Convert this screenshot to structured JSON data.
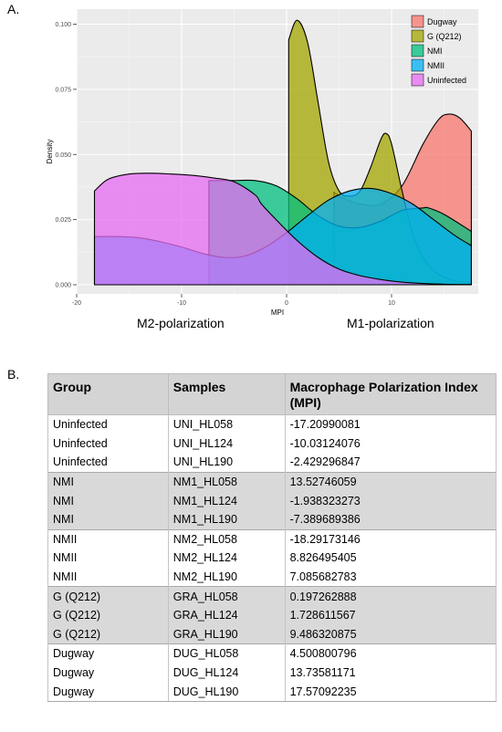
{
  "panels": {
    "a": "A.",
    "b": "B."
  },
  "polarization": {
    "left": "M2-polarization",
    "right": "M1-polarization"
  },
  "chart_data": {
    "type": "area",
    "xlabel": "MPI",
    "ylabel": "Density",
    "xlim": [
      -20,
      18
    ],
    "ylim": [
      0,
      0.105
    ],
    "xticks": [
      -20,
      -10,
      0,
      10
    ],
    "yticks": [
      0.0,
      0.025,
      0.05,
      0.075,
      0.1
    ],
    "ytick_labels": [
      "0.000",
      "0.025",
      "0.050",
      "0.075",
      "0.100"
    ],
    "grid": true,
    "legend": "top-right",
    "series": [
      {
        "name": "Dugway",
        "color": "#f8766d",
        "x": [
          4.5,
          5.5,
          7,
          9,
          11,
          13,
          14.5,
          15.5,
          16.5,
          17.6
        ],
        "y": [
          0.0355,
          0.033,
          0.031,
          0.031,
          0.038,
          0.054,
          0.0635,
          0.0655,
          0.064,
          0.059
        ]
      },
      {
        "name": "G (Q212)",
        "color": "#a3a500",
        "x": [
          0.2,
          1,
          2,
          3,
          4,
          5,
          6,
          7,
          8,
          9,
          9.5,
          10,
          11,
          12,
          13,
          14,
          15,
          16,
          17.6
        ],
        "y": [
          0.094,
          0.1015,
          0.093,
          0.07,
          0.047,
          0.036,
          0.034,
          0.036,
          0.045,
          0.056,
          0.058,
          0.054,
          0.036,
          0.02,
          0.0105,
          0.0055,
          0.003,
          0.0015,
          0.0008
        ]
      },
      {
        "name": "NMI",
        "color": "#00bf7d",
        "x": [
          -7.4,
          -5,
          -3,
          -1,
          1,
          3,
          5,
          7,
          9,
          11,
          13,
          13.5,
          15,
          17.6
        ],
        "y": [
          0.04,
          0.04,
          0.04,
          0.038,
          0.033,
          0.0265,
          0.0225,
          0.022,
          0.0245,
          0.0285,
          0.0295,
          0.0295,
          0.027,
          0.0205
        ]
      },
      {
        "name": "NMII",
        "color": "#00b0f6",
        "x": [
          -18.3,
          -16,
          -14,
          -12,
          -10,
          -8,
          -6,
          -4,
          -2,
          0,
          2,
          4,
          6,
          8,
          10,
          12,
          14,
          16,
          17.6
        ],
        "y": [
          0.0185,
          0.0185,
          0.018,
          0.0165,
          0.0145,
          0.012,
          0.0105,
          0.011,
          0.0145,
          0.02,
          0.0265,
          0.0325,
          0.036,
          0.037,
          0.035,
          0.031,
          0.025,
          0.019,
          0.015
        ]
      },
      {
        "name": "Uninfected",
        "color": "#e76bf3",
        "x": [
          -18.3,
          -17,
          -15,
          -13,
          -11,
          -9,
          -7,
          -5,
          -3,
          -2.4,
          -1,
          1,
          3,
          5,
          7,
          9,
          11,
          13,
          15,
          17.6
        ],
        "y": [
          0.036,
          0.0405,
          0.0425,
          0.0428,
          0.0425,
          0.042,
          0.041,
          0.0395,
          0.0345,
          0.031,
          0.025,
          0.017,
          0.0105,
          0.006,
          0.0035,
          0.002,
          0.001,
          0.0005,
          0.0002,
          0.0001
        ]
      }
    ]
  },
  "table": {
    "headers": [
      "Group",
      "Samples",
      "Macrophage Polarization Index (MPI)"
    ],
    "rows": [
      [
        "Uninfected",
        "UNI_HL058",
        "-17.20990081"
      ],
      [
        "Uninfected",
        "UNI_HL124",
        "-10.03124076"
      ],
      [
        "Uninfected",
        "UNI_HL190",
        "-2.429296847"
      ],
      [
        "NMI",
        "NM1_HL058",
        "13.52746059"
      ],
      [
        "NMI",
        "NM1_HL124",
        "-1.938323273"
      ],
      [
        "NMI",
        "NM1_HL190",
        "-7.389689386"
      ],
      [
        "NMII",
        "NM2_HL058",
        "-18.29173146"
      ],
      [
        "NMII",
        "NM2_HL124",
        "8.826495405"
      ],
      [
        "NMII",
        "NM2_HL190",
        "7.085682783"
      ],
      [
        "G (Q212)",
        "GRA_HL058",
        "0.197262888"
      ],
      [
        "G (Q212)",
        "GRA_HL124",
        "1.728611567"
      ],
      [
        "G (Q212)",
        "GRA_HL190",
        "9.486320875"
      ],
      [
        "Dugway",
        "DUG_HL058",
        "4.500800796"
      ],
      [
        "Dugway",
        "DUG_HL124",
        "13.73581171"
      ],
      [
        "Dugway",
        "DUG_HL190",
        "17.57092235"
      ]
    ]
  }
}
